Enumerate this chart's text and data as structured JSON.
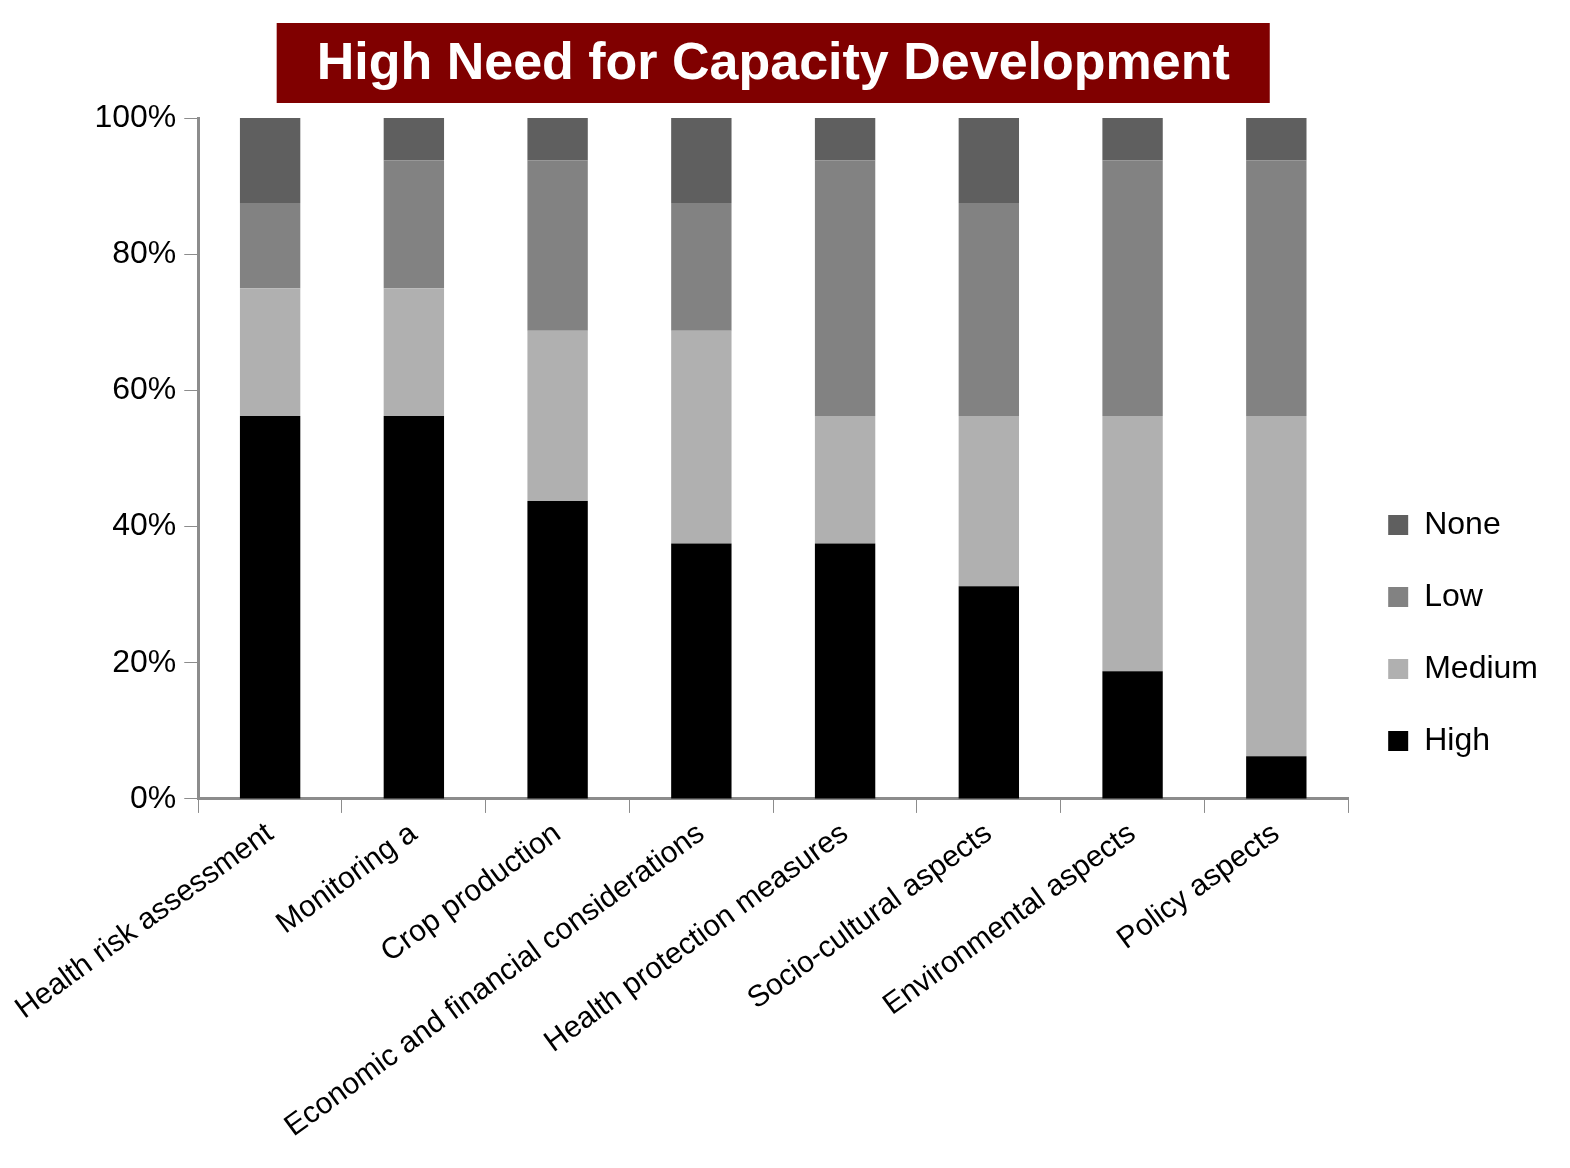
{
  "chart_data": {
    "type": "bar",
    "stacked": true,
    "categories": [
      "Health risk assessment",
      "Monitoring a",
      "Crop production",
      "Economic and financial considerations",
      "Health protection measures",
      "Socio-cultural aspects",
      "Environmental aspects",
      "Policy aspects"
    ],
    "series": [
      {
        "name": "High",
        "color": "#000000",
        "values": [
          56.25,
          56.25,
          43.75,
          37.5,
          37.5,
          31.25,
          18.75,
          6.25
        ]
      },
      {
        "name": "Medium",
        "color": "#b0b0b0",
        "values": [
          18.75,
          18.75,
          25,
          31.25,
          18.75,
          25,
          37.5,
          50
        ]
      },
      {
        "name": "Low",
        "color": "#828282",
        "values": [
          12.5,
          18.75,
          25,
          18.75,
          37.5,
          31.25,
          37.5,
          37.5
        ]
      },
      {
        "name": "None",
        "color": "#5f5f5f",
        "values": [
          12.5,
          6.25,
          6.25,
          12.5,
          6.25,
          12.5,
          6.25,
          6.25
        ]
      }
    ],
    "ylim": [
      0,
      100
    ],
    "yticks": [
      {
        "value": 0,
        "label": "0%"
      },
      {
        "value": 20,
        "label": "20%"
      },
      {
        "value": 40,
        "label": "40%"
      },
      {
        "value": 60,
        "label": "60%"
      },
      {
        "value": 80,
        "label": "80%"
      },
      {
        "value": 100,
        "label": "100%"
      }
    ],
    "grid": false,
    "legend": "right",
    "annotations": [
      "High Need for Capacity Development"
    ]
  }
}
